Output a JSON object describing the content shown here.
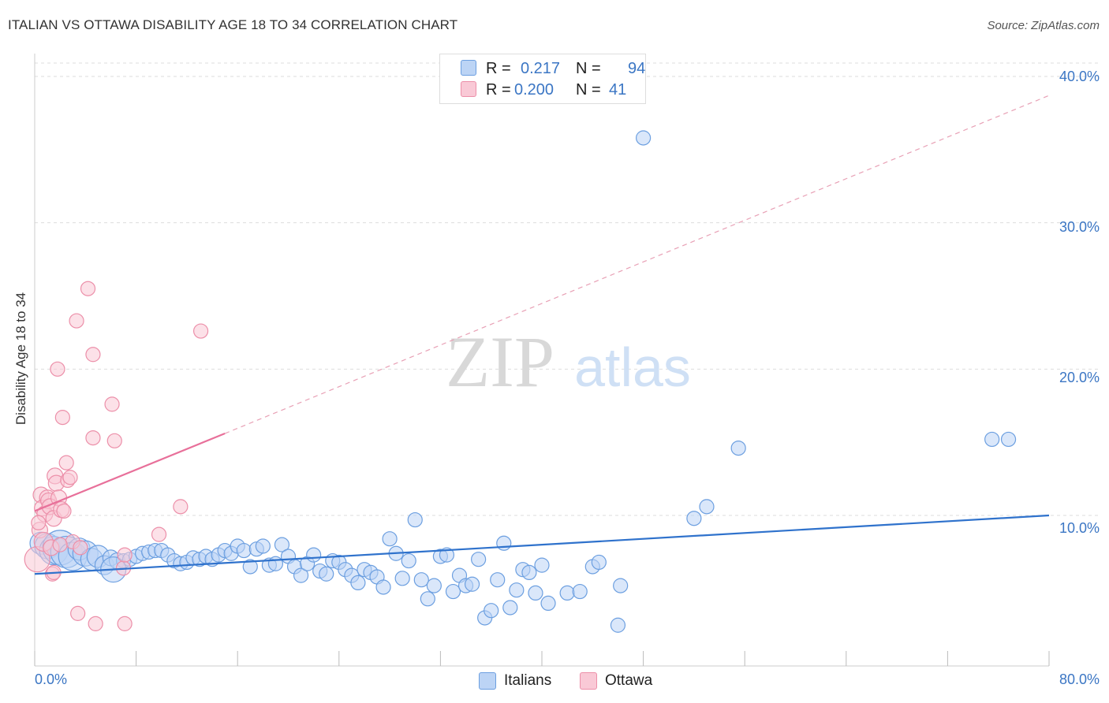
{
  "header": {
    "title": "ITALIAN VS OTTAWA DISABILITY AGE 18 TO 34 CORRELATION CHART",
    "source": "Source: ZipAtlas.com"
  },
  "legend": {
    "rows": [
      {
        "r_label": "R =",
        "r_value": "0.217",
        "n_label": "N =",
        "n_value": "94",
        "fill": "#bcd4f5",
        "stroke": "#6c9fe0"
      },
      {
        "r_label": "R =",
        "r_value": "0.200",
        "n_label": "N =",
        "n_value": "41",
        "fill": "#f9c9d6",
        "stroke": "#ec8fa9"
      }
    ]
  },
  "bottom_legend": [
    {
      "label": "Italians",
      "fill": "#bcd4f5",
      "stroke": "#6c9fe0"
    },
    {
      "label": "Ottawa",
      "fill": "#f9c9d6",
      "stroke": "#ec8fa9"
    }
  ],
  "watermark": {
    "zip": "ZIP",
    "atlas": "atlas"
  },
  "chart_data": {
    "type": "scatter",
    "title": "ITALIAN VS OTTAWA DISABILITY AGE 18 TO 34 CORRELATION CHART",
    "ylabel": "Disability Age 18 to 34",
    "xlabel": "",
    "xlim": [
      0,
      80
    ],
    "ylim": [
      0,
      40.5
    ],
    "x_tick_labels": [
      "0.0%",
      "80.0%"
    ],
    "y_tick_labels": [
      "10.0%",
      "20.0%",
      "30.0%",
      "40.0%"
    ],
    "y_tick_values": [
      10,
      20,
      30,
      40
    ],
    "grid": true,
    "series": [
      {
        "name": "Italians",
        "color": "#6c9fe0",
        "fill": "#bcd4f5",
        "trend": {
          "x0": 0,
          "y0": 6.0,
          "x1": 80,
          "y1": 10.0,
          "dashed_extension": false
        },
        "points": [
          [
            0.5,
            8.1,
            14
          ],
          [
            1.0,
            7.9,
            16
          ],
          [
            1.5,
            7.6,
            18
          ],
          [
            2.0,
            7.8,
            22
          ],
          [
            2.5,
            7.5,
            20
          ],
          [
            3.0,
            7.2,
            18
          ],
          [
            3.5,
            7.7,
            14
          ],
          [
            4.0,
            7.4,
            16
          ],
          [
            4.5,
            7.0,
            14
          ],
          [
            5.0,
            7.2,
            14
          ],
          [
            5.5,
            6.6,
            12
          ],
          [
            6.0,
            7.1,
            10
          ],
          [
            6.5,
            6.9,
            10
          ],
          [
            7.0,
            6.9,
            9
          ],
          [
            7.5,
            7.0,
            9
          ],
          [
            8.0,
            7.2,
            9
          ],
          [
            8.5,
            7.4,
            9
          ],
          [
            9.0,
            7.5,
            9
          ],
          [
            9.5,
            7.6,
            9
          ],
          [
            10.0,
            7.6,
            9
          ],
          [
            10.5,
            7.3,
            9
          ],
          [
            11.0,
            6.9,
            9
          ],
          [
            11.5,
            6.7,
            9
          ],
          [
            12.0,
            6.8,
            9
          ],
          [
            12.5,
            7.1,
            9
          ],
          [
            13.0,
            7.0,
            9
          ],
          [
            13.5,
            7.2,
            9
          ],
          [
            14.0,
            7.0,
            9
          ],
          [
            14.5,
            7.3,
            9
          ],
          [
            15.0,
            7.6,
            9
          ],
          [
            15.5,
            7.4,
            9
          ],
          [
            16.0,
            7.9,
            9
          ],
          [
            16.5,
            7.6,
            9
          ],
          [
            17.0,
            6.5,
            9
          ],
          [
            17.5,
            7.7,
            9
          ],
          [
            18.0,
            7.9,
            9
          ],
          [
            18.5,
            6.6,
            9
          ],
          [
            19.0,
            6.7,
            9
          ],
          [
            19.5,
            8.0,
            9
          ],
          [
            20.0,
            7.2,
            9
          ],
          [
            20.5,
            6.5,
            9
          ],
          [
            21.0,
            5.9,
            9
          ],
          [
            21.5,
            6.7,
            9
          ],
          [
            22.0,
            7.3,
            9
          ],
          [
            22.5,
            6.2,
            9
          ],
          [
            23.0,
            6.0,
            9
          ],
          [
            23.5,
            6.9,
            9
          ],
          [
            24.0,
            6.8,
            9
          ],
          [
            24.5,
            6.3,
            9
          ],
          [
            25.0,
            5.9,
            9
          ],
          [
            25.5,
            5.4,
            9
          ],
          [
            26.0,
            6.3,
            9
          ],
          [
            26.5,
            6.1,
            9
          ],
          [
            27.0,
            5.8,
            9
          ],
          [
            27.5,
            5.1,
            9
          ],
          [
            28.0,
            8.4,
            9
          ],
          [
            28.5,
            7.4,
            9
          ],
          [
            29.0,
            5.7,
            9
          ],
          [
            29.5,
            6.9,
            9
          ],
          [
            30.0,
            9.7,
            9
          ],
          [
            30.5,
            5.6,
            9
          ],
          [
            31.0,
            4.3,
            9
          ],
          [
            31.5,
            5.2,
            9
          ],
          [
            32.0,
            7.2,
            9
          ],
          [
            32.5,
            7.3,
            9
          ],
          [
            33.0,
            4.8,
            9
          ],
          [
            33.5,
            5.9,
            9
          ],
          [
            34.0,
            5.2,
            9
          ],
          [
            34.5,
            5.3,
            9
          ],
          [
            35.0,
            7.0,
            9
          ],
          [
            35.5,
            3.0,
            9
          ],
          [
            36.0,
            3.5,
            9
          ],
          [
            36.5,
            5.6,
            9
          ],
          [
            37.0,
            8.1,
            9
          ],
          [
            37.5,
            3.7,
            9
          ],
          [
            38.0,
            4.9,
            9
          ],
          [
            38.5,
            6.3,
            9
          ],
          [
            39.0,
            6.1,
            9
          ],
          [
            39.5,
            4.7,
            9
          ],
          [
            40.0,
            6.6,
            9
          ],
          [
            40.5,
            4.0,
            9
          ],
          [
            42.0,
            4.7,
            9
          ],
          [
            43.0,
            4.8,
            9
          ],
          [
            44.0,
            6.5,
            9
          ],
          [
            44.5,
            6.8,
            9
          ],
          [
            46.0,
            2.5,
            9
          ],
          [
            46.2,
            5.2,
            9
          ],
          [
            48.0,
            35.8,
            9
          ],
          [
            52.0,
            9.8,
            9
          ],
          [
            53.0,
            10.6,
            9
          ],
          [
            55.5,
            14.6,
            9
          ],
          [
            75.5,
            15.2,
            9
          ],
          [
            76.8,
            15.2,
            9
          ],
          [
            6.2,
            6.3,
            16
          ]
        ]
      },
      {
        "name": "Ottawa",
        "color": "#ec8fa9",
        "fill": "#f9c9d6",
        "trend": {
          "x0": 0,
          "y0": 10.3,
          "x1": 15,
          "y1": 15.6,
          "dashed_to_x": 80,
          "dashed_to_y": 38.7
        },
        "points": [
          [
            0.2,
            7.0,
            16
          ],
          [
            0.4,
            9.0,
            10
          ],
          [
            0.5,
            11.4,
            10
          ],
          [
            0.6,
            10.5,
            10
          ],
          [
            0.7,
            8.2,
            12
          ],
          [
            0.8,
            10.1,
            10
          ],
          [
            1.0,
            11.2,
            10
          ],
          [
            1.1,
            11.0,
            10
          ],
          [
            1.2,
            10.6,
            10
          ],
          [
            1.3,
            7.8,
            10
          ],
          [
            1.4,
            6.0,
            9
          ],
          [
            1.5,
            9.8,
            10
          ],
          [
            1.6,
            12.7,
            10
          ],
          [
            1.7,
            12.2,
            10
          ],
          [
            1.8,
            20.0,
            9
          ],
          [
            1.9,
            11.2,
            10
          ],
          [
            2.1,
            10.4,
            10
          ],
          [
            2.2,
            16.7,
            9
          ],
          [
            2.3,
            10.3,
            9
          ],
          [
            2.5,
            13.6,
            9
          ],
          [
            2.6,
            12.4,
            9
          ],
          [
            2.8,
            12.6,
            9
          ],
          [
            3.0,
            8.2,
            9
          ],
          [
            3.3,
            23.3,
            9
          ],
          [
            3.4,
            3.3,
            9
          ],
          [
            4.2,
            25.5,
            9
          ],
          [
            4.6,
            21.0,
            9
          ],
          [
            4.6,
            15.3,
            9
          ],
          [
            4.8,
            2.6,
            9
          ],
          [
            6.1,
            17.6,
            9
          ],
          [
            6.3,
            15.1,
            9
          ],
          [
            7.0,
            6.4,
            9
          ],
          [
            7.1,
            7.3,
            9
          ],
          [
            7.1,
            2.6,
            9
          ],
          [
            9.8,
            8.7,
            9
          ],
          [
            11.5,
            10.6,
            9
          ],
          [
            13.1,
            22.6,
            9
          ],
          [
            1.5,
            6.1,
            9
          ],
          [
            0.3,
            9.5,
            9
          ],
          [
            2.0,
            8.0,
            9
          ],
          [
            3.6,
            7.8,
            9
          ]
        ]
      }
    ]
  }
}
